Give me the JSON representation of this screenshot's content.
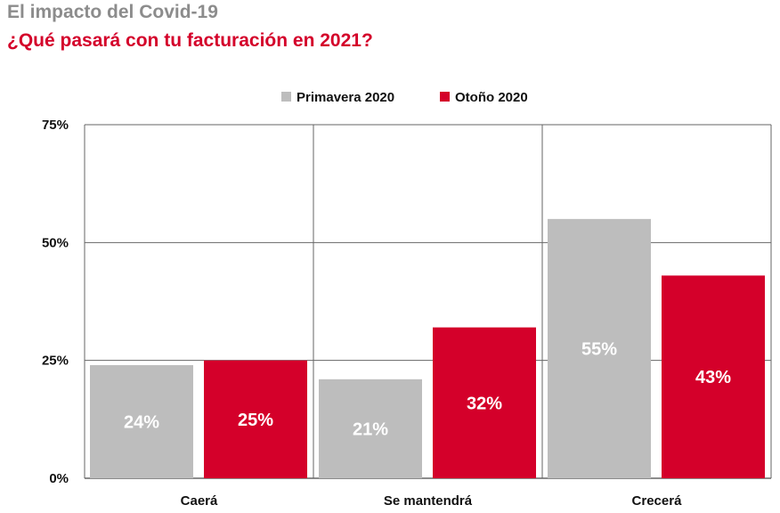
{
  "header": {
    "title": "El impacto del Covid-19",
    "subtitle": "¿Qué pasará con tu facturación en 2021?"
  },
  "colors": {
    "series1": "#bdbdbd",
    "series2": "#d4002a",
    "grid": "#666666"
  },
  "chart_data": {
    "type": "bar",
    "title": "El impacto del Covid-19",
    "subtitle": "¿Qué pasará con tu facturación en 2021?",
    "categories": [
      "Caerá",
      "Se mantendrá",
      "Crecerá"
    ],
    "series": [
      {
        "name": "Primavera 2020",
        "values": [
          24,
          21,
          55
        ],
        "labels": [
          "24%",
          "21%",
          "55%"
        ]
      },
      {
        "name": "Otoño 2020",
        "values": [
          25,
          32,
          43
        ],
        "labels": [
          "25%",
          "32%",
          "43%"
        ]
      }
    ],
    "ylim": [
      0,
      75
    ],
    "yticks": [
      0,
      25,
      50,
      75
    ],
    "ytick_labels": [
      "0%",
      "25%",
      "50%",
      "75%"
    ],
    "xlabel": "",
    "ylabel": "",
    "legend_position": "top-center",
    "grid": true
  }
}
